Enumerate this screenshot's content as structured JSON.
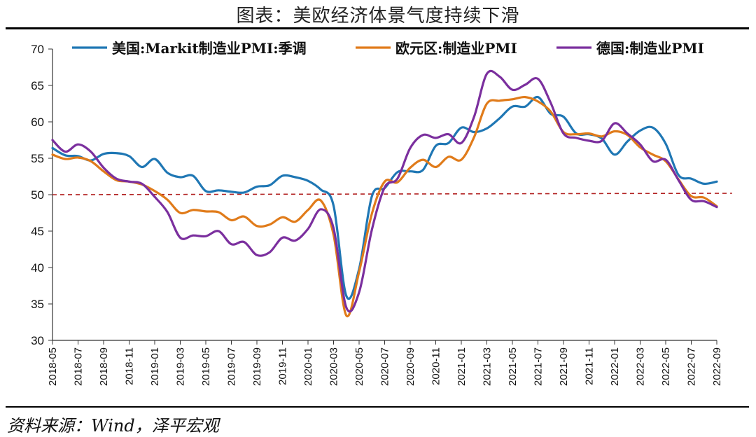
{
  "title": "图表：美欧经济体景气度持续下滑",
  "source": "资料来源：Wind，泽平宏观",
  "chart_data": {
    "type": "line",
    "ylim": [
      30,
      70
    ],
    "yticks": [
      30,
      35,
      40,
      45,
      50,
      55,
      60,
      65,
      70
    ],
    "x": [
      "2018-05",
      "2018-06",
      "2018-07",
      "2018-08",
      "2018-09",
      "2018-10",
      "2018-11",
      "2018-12",
      "2019-01",
      "2019-02",
      "2019-03",
      "2019-04",
      "2019-05",
      "2019-06",
      "2019-07",
      "2019-08",
      "2019-09",
      "2019-10",
      "2019-11",
      "2019-12",
      "2020-01",
      "2020-02",
      "2020-03",
      "2020-04",
      "2020-05",
      "2020-06",
      "2020-07",
      "2020-08",
      "2020-09",
      "2020-10",
      "2020-11",
      "2020-12",
      "2021-01",
      "2021-02",
      "2021-03",
      "2021-04",
      "2021-05",
      "2021-06",
      "2021-07",
      "2021-08",
      "2021-09",
      "2021-10",
      "2021-11",
      "2021-12",
      "2022-01",
      "2022-02",
      "2022-03",
      "2022-04",
      "2022-05",
      "2022-06",
      "2022-07",
      "2022-08",
      "2022-09"
    ],
    "xticks": [
      "2018-05",
      "2018-07",
      "2018-09",
      "2018-11",
      "2019-01",
      "2019-03",
      "2019-05",
      "2019-07",
      "2019-09",
      "2019-11",
      "2020-01",
      "2020-03",
      "2020-05",
      "2020-07",
      "2020-09",
      "2020-11",
      "2021-01",
      "2021-03",
      "2021-05",
      "2021-07",
      "2021-09",
      "2021-11",
      "2022-01",
      "2022-03",
      "2022-05",
      "2022-07",
      "2022-09"
    ],
    "series": [
      {
        "name": "美国:Markit制造业PMI:季调",
        "color": "#1f77b4",
        "values": [
          56.4,
          55.4,
          55.3,
          54.7,
          55.6,
          55.7,
          55.3,
          53.8,
          54.9,
          53.0,
          52.4,
          52.6,
          50.5,
          50.6,
          50.4,
          50.3,
          51.1,
          51.3,
          52.6,
          52.4,
          51.9,
          50.7,
          48.5,
          36.1,
          39.8,
          49.8,
          50.9,
          53.1,
          53.2,
          53.4,
          56.7,
          57.1,
          59.2,
          58.6,
          59.1,
          60.5,
          62.1,
          62.1,
          63.4,
          61.1,
          60.7,
          58.4,
          58.3,
          57.7,
          55.5,
          57.3,
          58.8,
          59.2,
          57.0,
          52.7,
          52.2,
          51.5,
          51.8
        ]
      },
      {
        "name": "欧元区:制造业PMI",
        "color": "#e07b1a",
        "values": [
          55.5,
          54.9,
          55.1,
          54.6,
          53.2,
          52.0,
          51.8,
          51.4,
          50.5,
          49.3,
          47.5,
          47.9,
          47.7,
          47.6,
          46.5,
          47.0,
          45.7,
          45.9,
          46.9,
          46.3,
          47.9,
          49.2,
          44.5,
          33.4,
          39.4,
          47.4,
          51.8,
          51.7,
          53.7,
          54.8,
          53.8,
          55.2,
          54.8,
          57.9,
          62.5,
          62.9,
          63.1,
          63.4,
          62.8,
          61.4,
          58.6,
          58.3,
          58.4,
          58.0,
          58.7,
          58.2,
          56.5,
          55.5,
          54.6,
          52.1,
          49.8,
          49.6,
          48.4
        ]
      },
      {
        "name": "德国:制造业PMI",
        "color": "#7b2f9e",
        "values": [
          57.5,
          55.9,
          56.9,
          55.9,
          53.7,
          52.2,
          51.8,
          51.5,
          49.7,
          47.6,
          44.1,
          44.4,
          44.3,
          45.0,
          43.2,
          43.5,
          41.7,
          42.1,
          44.1,
          43.7,
          45.3,
          48.0,
          45.4,
          34.5,
          36.6,
          45.2,
          51.0,
          52.2,
          56.4,
          58.2,
          57.8,
          58.3,
          57.1,
          60.7,
          66.6,
          66.2,
          64.4,
          65.1,
          65.9,
          62.6,
          58.4,
          57.8,
          57.4,
          57.4,
          59.8,
          58.4,
          56.9,
          54.6,
          54.8,
          52.0,
          49.3,
          49.1,
          48.3
        ]
      }
    ],
    "reference_line": {
      "value": 50,
      "color": "#b22222",
      "style": "dashed"
    },
    "legend_position": "top"
  }
}
